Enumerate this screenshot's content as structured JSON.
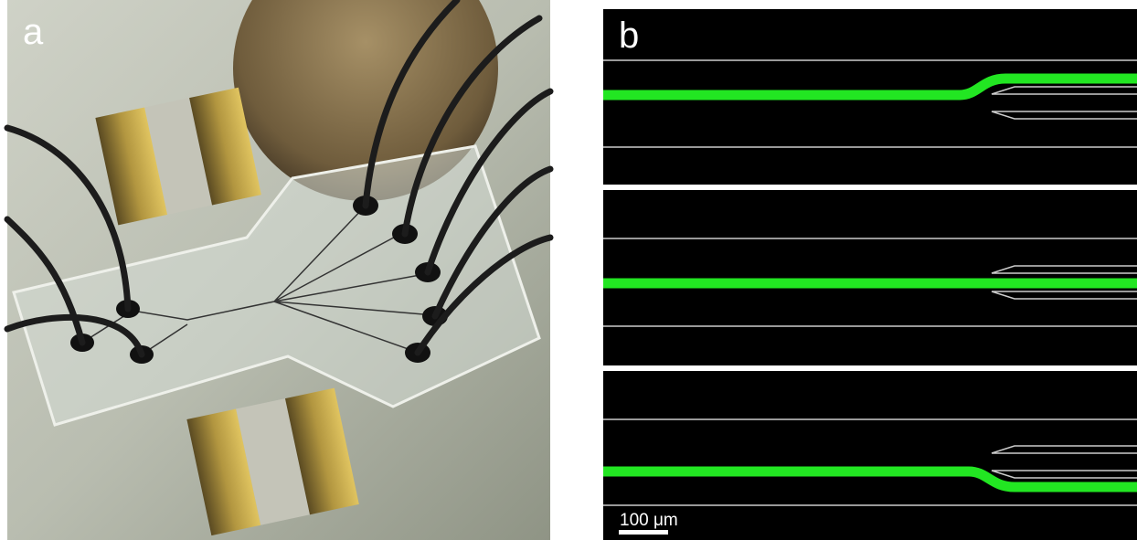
{
  "panels": {
    "a": {
      "label": "a"
    },
    "b": {
      "label": "b",
      "scale_bar": "100 μm"
    }
  }
}
